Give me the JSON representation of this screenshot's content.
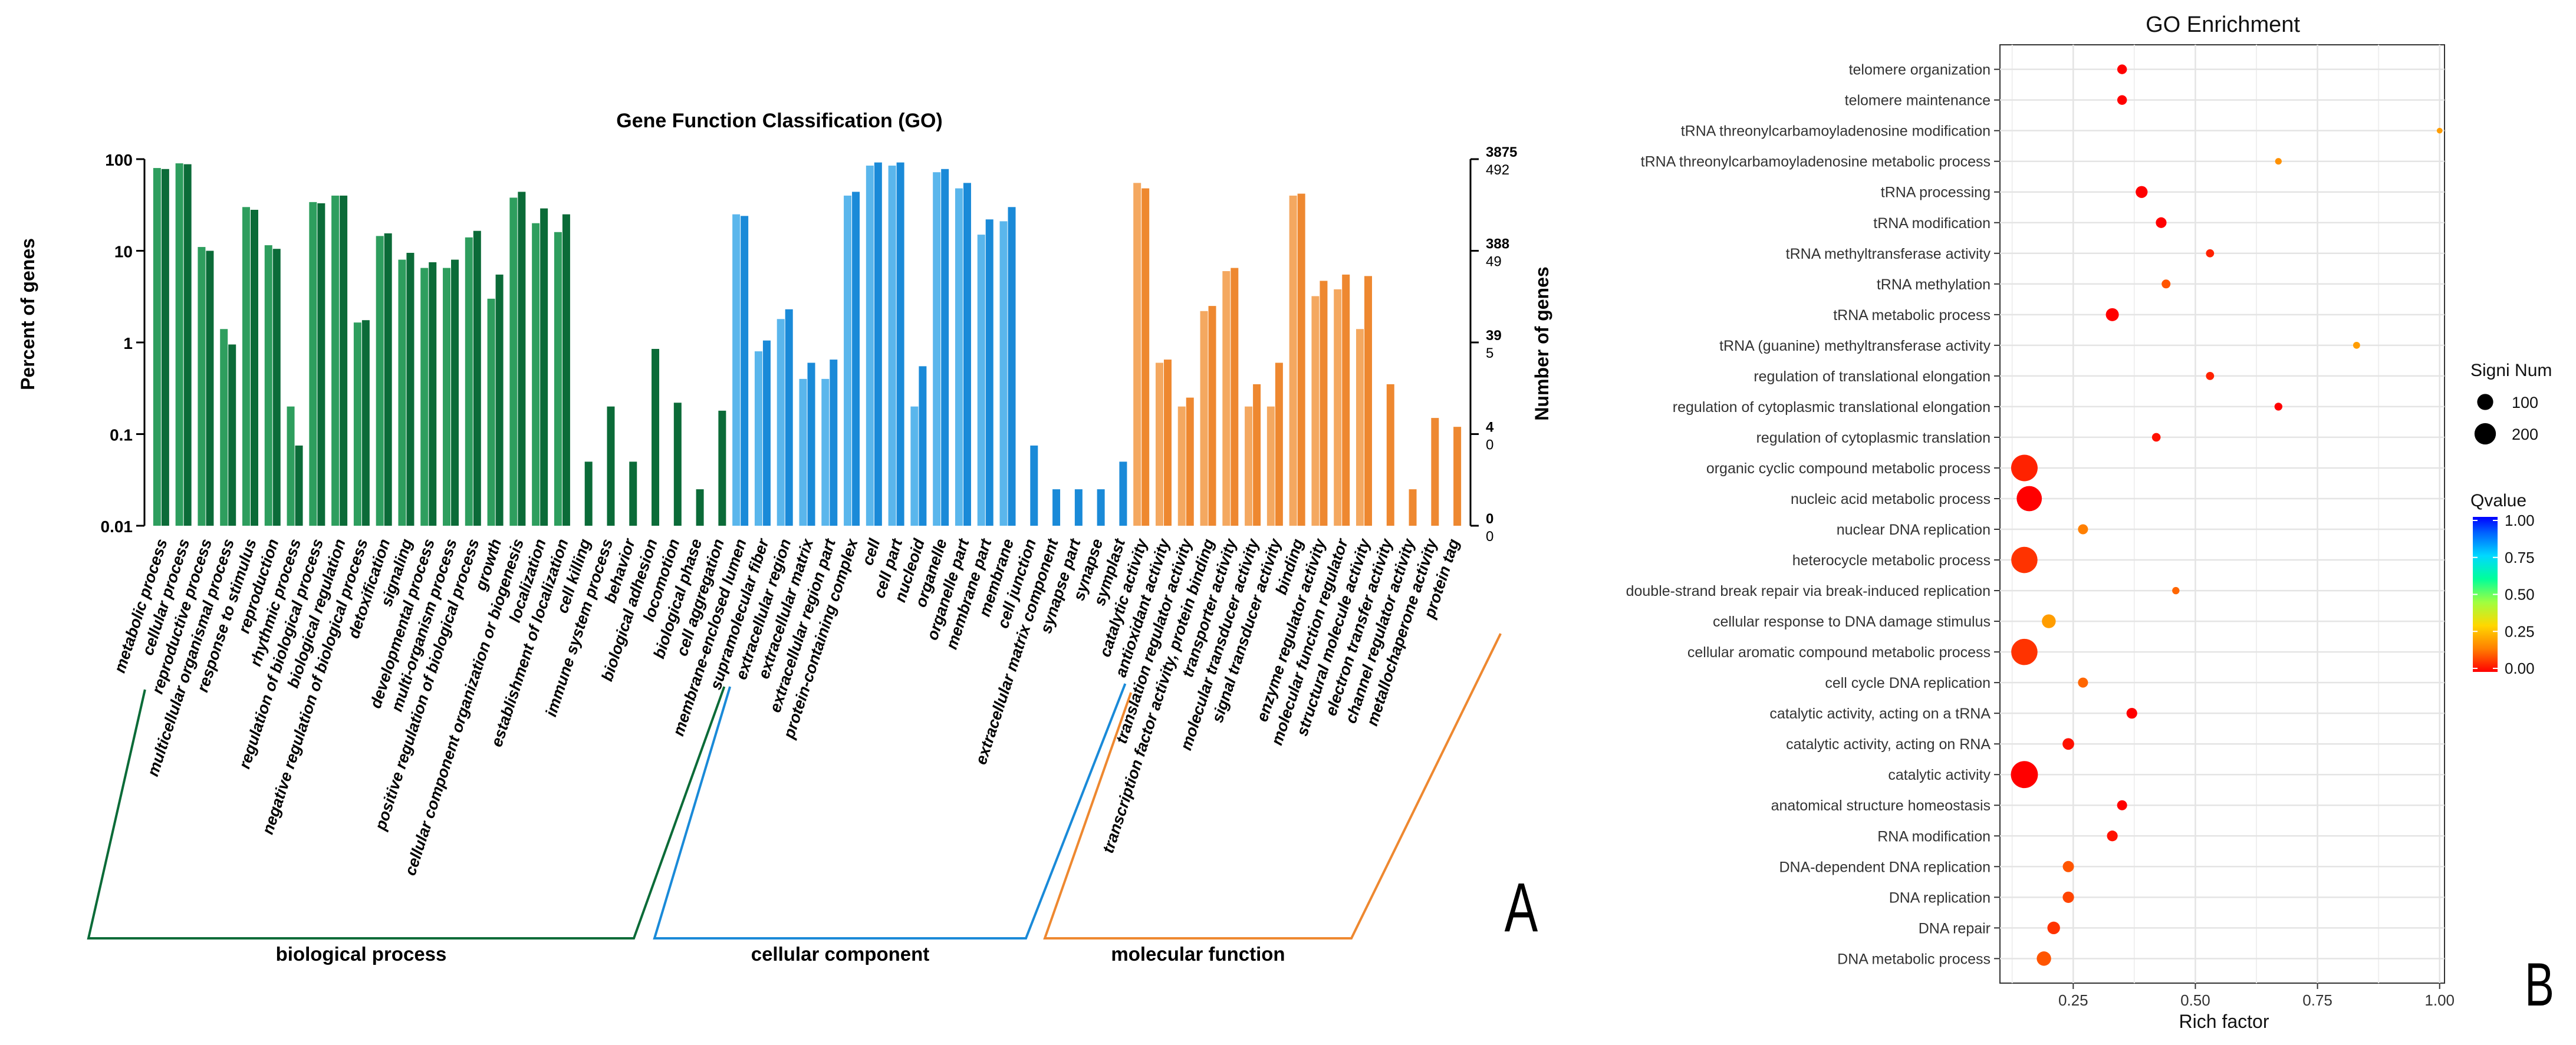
{
  "chart_data": [
    {
      "panel_label": "A",
      "type": "bar",
      "title": "Gene Function Classification (GO)",
      "ylabel": "Percent of genes",
      "y2label": "Number of genes",
      "y_scale": "log",
      "ylim": [
        0.01,
        100
      ],
      "y_ticks": [
        "100",
        "10",
        "1",
        "0.1",
        "0.01"
      ],
      "y2_ticks": [
        {
          "top": "3875",
          "bottom": "492"
        },
        {
          "top": "388",
          "bottom": "49"
        },
        {
          "top": "39",
          "bottom": "5"
        },
        {
          "top": "4",
          "bottom": "0"
        },
        {
          "top": "0",
          "bottom": "0"
        }
      ],
      "groups": [
        {
          "name": "biological process",
          "color_light": "#2e9e5e",
          "color_dark": "#0b6b38",
          "color_line": "#0b6b38"
        },
        {
          "name": "cellular component",
          "color_light": "#5ab6ec",
          "color_dark": "#1a8ad8",
          "color_line": "#1a8ad8"
        },
        {
          "name": "molecular function",
          "color_light": "#f4a860",
          "color_dark": "#ee8830",
          "color_line": "#ee8830"
        }
      ],
      "categories": [
        {
          "label": "metabolic process",
          "group": 0,
          "v1": 80,
          "v2": 78
        },
        {
          "label": "cellular process",
          "group": 0,
          "v1": 90,
          "v2": 88
        },
        {
          "label": "reproductive process",
          "group": 0,
          "v1": 11,
          "v2": 10
        },
        {
          "label": "multicellular organismal process",
          "group": 0,
          "v1": 1.4,
          "v2": 0.95
        },
        {
          "label": "response to stimulus",
          "group": 0,
          "v1": 30,
          "v2": 28
        },
        {
          "label": "reproduction",
          "group": 0,
          "v1": 11.5,
          "v2": 10.5
        },
        {
          "label": "rhythmic process",
          "group": 0,
          "v1": 0.2,
          "v2": 0.075
        },
        {
          "label": "regulation of biological process",
          "group": 0,
          "v1": 34,
          "v2": 33
        },
        {
          "label": "biological regulation",
          "group": 0,
          "v1": 40,
          "v2": 40
        },
        {
          "label": "negative regulation of biological process",
          "group": 0,
          "v1": 1.65,
          "v2": 1.75
        },
        {
          "label": "detoxification",
          "group": 0,
          "v1": 14.5,
          "v2": 15.5
        },
        {
          "label": "signaling",
          "group": 0,
          "v1": 8,
          "v2": 9.5
        },
        {
          "label": "developmental process",
          "group": 0,
          "v1": 6.5,
          "v2": 7.5
        },
        {
          "label": "multi-organism process",
          "group": 0,
          "v1": 6.5,
          "v2": 8
        },
        {
          "label": "positive regulation of biological process",
          "group": 0,
          "v1": 14,
          "v2": 16.5
        },
        {
          "label": "growth",
          "group": 0,
          "v1": 3,
          "v2": 5.5
        },
        {
          "label": "cellular component organization or biogenesis",
          "group": 0,
          "v1": 38,
          "v2": 44
        },
        {
          "label": "localization",
          "group": 0,
          "v1": 20,
          "v2": 29
        },
        {
          "label": "establishment of localization",
          "group": 0,
          "v1": 16,
          "v2": 25
        },
        {
          "label": "cell killing",
          "group": 0,
          "v1": null,
          "v2": 0.05
        },
        {
          "label": "immune system process",
          "group": 0,
          "v1": null,
          "v2": 0.2
        },
        {
          "label": "behavior",
          "group": 0,
          "v1": null,
          "v2": 0.05
        },
        {
          "label": "biological adhesion",
          "group": 0,
          "v1": null,
          "v2": 0.85
        },
        {
          "label": "locomotion",
          "group": 0,
          "v1": null,
          "v2": 0.22
        },
        {
          "label": "biological phase",
          "group": 0,
          "v1": null,
          "v2": 0.025
        },
        {
          "label": "cell aggregation",
          "group": 0,
          "v1": null,
          "v2": 0.18
        },
        {
          "label": "membrane-enclosed lumen",
          "group": 1,
          "v1": 25,
          "v2": 24
        },
        {
          "label": "supramolecular fiber",
          "group": 1,
          "v1": 0.8,
          "v2": 1.05
        },
        {
          "label": "extracellular region",
          "group": 1,
          "v1": 1.8,
          "v2": 2.3
        },
        {
          "label": "extracellular matrix",
          "group": 1,
          "v1": 0.4,
          "v2": 0.6
        },
        {
          "label": "extracellular region part",
          "group": 1,
          "v1": 0.4,
          "v2": 0.65
        },
        {
          "label": "protein-containing complex",
          "group": 1,
          "v1": 40,
          "v2": 44
        },
        {
          "label": "cell",
          "group": 1,
          "v1": 85,
          "v2": 92
        },
        {
          "label": "cell part",
          "group": 1,
          "v1": 85,
          "v2": 92
        },
        {
          "label": "nucleoid",
          "group": 1,
          "v1": 0.2,
          "v2": 0.55
        },
        {
          "label": "organelle",
          "group": 1,
          "v1": 72,
          "v2": 78
        },
        {
          "label": "organelle part",
          "group": 1,
          "v1": 48,
          "v2": 55
        },
        {
          "label": "membrane part",
          "group": 1,
          "v1": 15,
          "v2": 22
        },
        {
          "label": "membrane",
          "group": 1,
          "v1": 21,
          "v2": 30
        },
        {
          "label": "cell junction",
          "group": 1,
          "v1": null,
          "v2": 0.075
        },
        {
          "label": "extracellular matrix component",
          "group": 1,
          "v1": null,
          "v2": 0.025
        },
        {
          "label": "synapse part",
          "group": 1,
          "v1": null,
          "v2": 0.025
        },
        {
          "label": "synapse",
          "group": 1,
          "v1": null,
          "v2": 0.025
        },
        {
          "label": "symplast",
          "group": 1,
          "v1": null,
          "v2": 0.05
        },
        {
          "label": "catalytic activity",
          "group": 2,
          "v1": 55,
          "v2": 48
        },
        {
          "label": "antioxidant activity",
          "group": 2,
          "v1": 0.6,
          "v2": 0.65
        },
        {
          "label": "translation regulator activity",
          "group": 2,
          "v1": 0.2,
          "v2": 0.25
        },
        {
          "label": "transcription factor activity, protein binding",
          "group": 2,
          "v1": 2.2,
          "v2": 2.5
        },
        {
          "label": "transporter activity",
          "group": 2,
          "v1": 6,
          "v2": 6.5
        },
        {
          "label": "molecular transducer activity",
          "group": 2,
          "v1": 0.2,
          "v2": 0.35
        },
        {
          "label": "signal transducer activity",
          "group": 2,
          "v1": 0.2,
          "v2": 0.6
        },
        {
          "label": "binding",
          "group": 2,
          "v1": 40,
          "v2": 42
        },
        {
          "label": "enzyme regulator activity",
          "group": 2,
          "v1": 3.2,
          "v2": 4.7
        },
        {
          "label": "molecular function regulator",
          "group": 2,
          "v1": 3.8,
          "v2": 5.5
        },
        {
          "label": "structural molecule activity",
          "group": 2,
          "v1": 1.4,
          "v2": 5.3
        },
        {
          "label": "electron transfer activity",
          "group": 2,
          "v1": null,
          "v2": 0.35
        },
        {
          "label": "channel regulator activity",
          "group": 2,
          "v1": null,
          "v2": 0.025
        },
        {
          "label": "metallochaperone activity",
          "group": 2,
          "v1": null,
          "v2": 0.15
        },
        {
          "label": "protein tag",
          "group": 2,
          "v1": null,
          "v2": 0.12
        }
      ]
    },
    {
      "panel_label": "B",
      "type": "scatter",
      "title": "GO Enrichment",
      "xlabel": "Rich factor",
      "xlim": [
        0.1,
        1.01
      ],
      "x_ticks": [
        0.25,
        0.5,
        0.75,
        1.0
      ],
      "x_tick_labels": [
        "0.25",
        "0.50",
        "0.75",
        "1.00"
      ],
      "grid": true,
      "size_legend": {
        "title": "Signi Num",
        "entries": [
          {
            "label": "100",
            "value": 100
          },
          {
            "label": "200",
            "value": 200
          }
        ]
      },
      "color_legend": {
        "title": "Qvalue",
        "ticks": [
          "1.00",
          "0.75",
          "0.50",
          "0.25",
          "0.00"
        ],
        "min": 0,
        "max": 1
      },
      "terms": [
        {
          "term": "telomere organization",
          "rich_factor": 0.35,
          "signi_num": 16,
          "qvalue": 0.0
        },
        {
          "term": "telomere maintenance",
          "rich_factor": 0.35,
          "signi_num": 16,
          "qvalue": 0.0
        },
        {
          "term": "tRNA threonylcarbamoyladenosine modification",
          "rich_factor": 1.0,
          "signi_num": 2,
          "qvalue": 0.2
        },
        {
          "term": "tRNA threonylcarbamoyladenosine metabolic process",
          "rich_factor": 0.67,
          "signi_num": 4,
          "qvalue": 0.18
        },
        {
          "term": "tRNA processing",
          "rich_factor": 0.39,
          "signi_num": 30,
          "qvalue": 0.0
        },
        {
          "term": "tRNA modification",
          "rich_factor": 0.43,
          "signi_num": 22,
          "qvalue": 0.0
        },
        {
          "term": "tRNA methyltransferase activity",
          "rich_factor": 0.53,
          "signi_num": 9,
          "qvalue": 0.04
        },
        {
          "term": "tRNA methylation",
          "rich_factor": 0.44,
          "signi_num": 12,
          "qvalue": 0.1
        },
        {
          "term": "tRNA metabolic process",
          "rich_factor": 0.33,
          "signi_num": 38,
          "qvalue": 0.0
        },
        {
          "term": "tRNA (guanine) methyltransferase activity",
          "rich_factor": 0.83,
          "signi_num": 5,
          "qvalue": 0.2
        },
        {
          "term": "regulation of translational elongation",
          "rich_factor": 0.53,
          "signi_num": 9,
          "qvalue": 0.04
        },
        {
          "term": "regulation of cytoplasmic translational elongation",
          "rich_factor": 0.67,
          "signi_num": 8,
          "qvalue": 0.0
        },
        {
          "term": "regulation of cytoplasmic translation",
          "rich_factor": 0.42,
          "signi_num": 11,
          "qvalue": 0.02
        },
        {
          "term": "organic cyclic compound metabolic process",
          "rich_factor": 0.15,
          "signi_num": 225,
          "qvalue": 0.04
        },
        {
          "term": "nucleic acid metabolic process",
          "rich_factor": 0.16,
          "signi_num": 200,
          "qvalue": 0.0
        },
        {
          "term": "nuclear DNA replication",
          "rich_factor": 0.27,
          "signi_num": 18,
          "qvalue": 0.15
        },
        {
          "term": "heterocycle metabolic process",
          "rich_factor": 0.15,
          "signi_num": 220,
          "qvalue": 0.06
        },
        {
          "term": "double-strand break repair via break-induced replication",
          "rich_factor": 0.46,
          "signi_num": 6,
          "qvalue": 0.12
        },
        {
          "term": "cellular response to DNA damage stimulus",
          "rich_factor": 0.2,
          "signi_num": 45,
          "qvalue": 0.2
        },
        {
          "term": "cellular aromatic compound metabolic process",
          "rich_factor": 0.15,
          "signi_num": 220,
          "qvalue": 0.06
        },
        {
          "term": "cell cycle DNA replication",
          "rich_factor": 0.27,
          "signi_num": 18,
          "qvalue": 0.12
        },
        {
          "term": "catalytic activity, acting on a tRNA",
          "rich_factor": 0.37,
          "signi_num": 22,
          "qvalue": 0.0
        },
        {
          "term": "catalytic activity, acting on RNA",
          "rich_factor": 0.24,
          "signi_num": 28,
          "qvalue": 0.02
        },
        {
          "term": "catalytic activity",
          "rich_factor": 0.15,
          "signi_num": 235,
          "qvalue": 0.0
        },
        {
          "term": "anatomical structure homeostasis",
          "rich_factor": 0.35,
          "signi_num": 18,
          "qvalue": 0.0
        },
        {
          "term": "RNA modification",
          "rich_factor": 0.33,
          "signi_num": 22,
          "qvalue": 0.02
        },
        {
          "term": "DNA-dependent DNA replication",
          "rich_factor": 0.24,
          "signi_num": 25,
          "qvalue": 0.1
        },
        {
          "term": "DNA replication",
          "rich_factor": 0.24,
          "signi_num": 26,
          "qvalue": 0.08
        },
        {
          "term": "DNA repair",
          "rich_factor": 0.21,
          "signi_num": 35,
          "qvalue": 0.06
        },
        {
          "term": "DNA metabolic process",
          "rich_factor": 0.19,
          "signi_num": 50,
          "qvalue": 0.1
        }
      ]
    }
  ]
}
